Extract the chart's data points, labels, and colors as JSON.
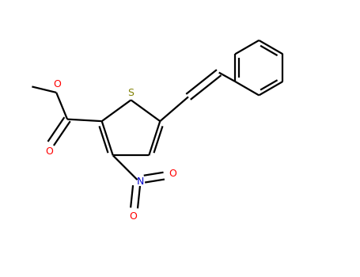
{
  "bg_color": "#ffffff",
  "bond_color": "#000000",
  "S_color": "#808000",
  "O_color": "#ff0000",
  "N_color": "#0000cd",
  "lw": 1.6,
  "figsize": [
    4.55,
    3.5
  ],
  "dpi": 100,
  "xlim": [
    0,
    9.1
  ],
  "ylim": [
    0,
    7.0
  ]
}
